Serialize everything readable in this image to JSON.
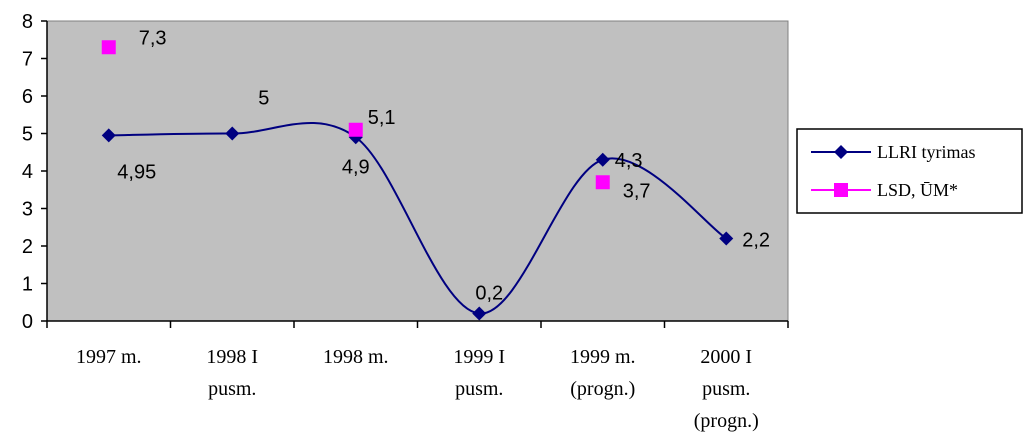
{
  "chart_data": {
    "type": "line",
    "title": "",
    "xlabel": "",
    "ylabel": "",
    "ylim": [
      0,
      8
    ],
    "yticks": [
      "0",
      "1",
      "2",
      "3",
      "4",
      "5",
      "6",
      "7",
      "8"
    ],
    "categories": [
      [
        "1997 m."
      ],
      [
        "1998 I",
        "pusm."
      ],
      [
        "1998 m."
      ],
      [
        "1999 I",
        "pusm."
      ],
      [
        "1999 m.",
        "(progn.)"
      ],
      [
        "2000 I",
        "pusm.",
        "(progn.)"
      ]
    ],
    "grid": false,
    "plot_background": "#c0c0c0",
    "legend_position": "right",
    "series": [
      {
        "name": "LLRI tyrimas",
        "color": "#000080",
        "marker": "diamond",
        "smooth": true,
        "values": [
          4.95,
          5,
          4.9,
          0.2,
          4.3,
          2.2
        ],
        "labels": [
          "4,95",
          "5",
          "4,9",
          "0,2",
          "4,3",
          "2,2"
        ]
      },
      {
        "name": "LSD, ŪM*",
        "color": "#ff00ff",
        "marker": "square",
        "smooth": false,
        "values": [
          7.3,
          null,
          5.1,
          null,
          3.7,
          null
        ],
        "labels": [
          "7,3",
          null,
          "5,1",
          null,
          "3,7",
          null
        ]
      }
    ]
  }
}
